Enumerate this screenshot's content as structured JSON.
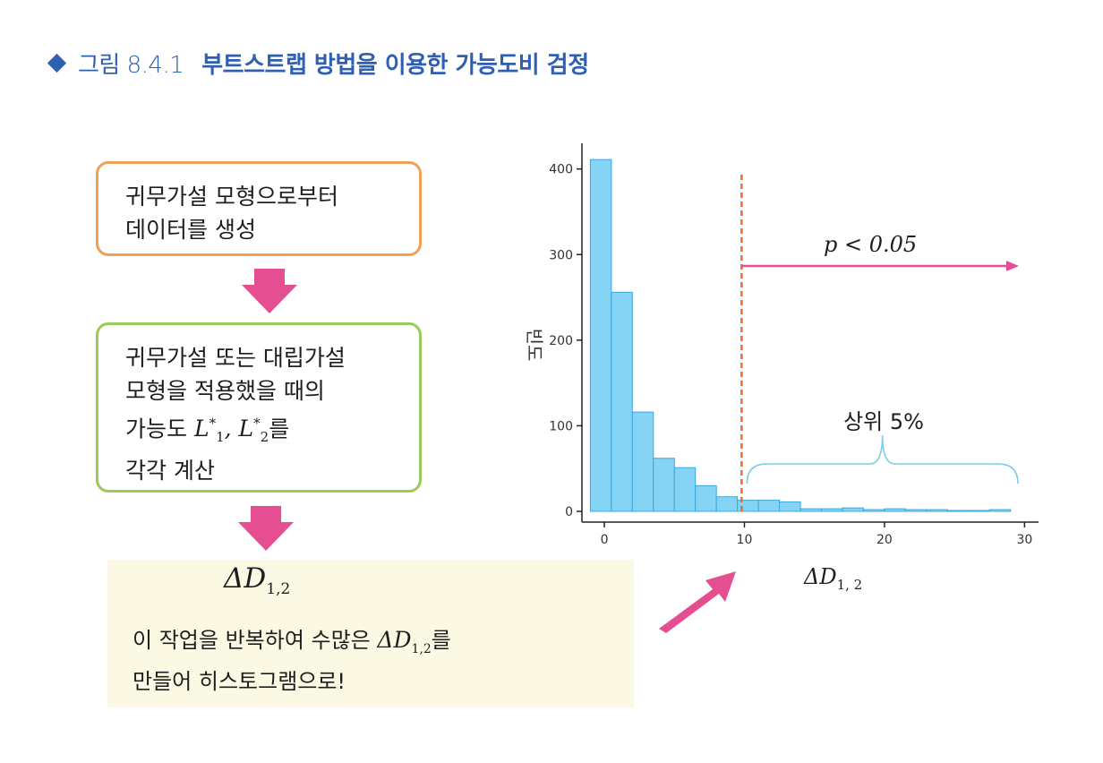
{
  "header": {
    "figure_label": "그림 8.4.1",
    "title": "부트스트랩 방법을 이용한 가능도비 검정"
  },
  "flow": {
    "step1": {
      "line1": "귀무가설 모형으로부터",
      "line2": "데이터를 생성"
    },
    "step2": {
      "line1": "귀무가설 또는 대립가설",
      "line2": "모형을 적용했을 때의",
      "line3_prefix": "가능도",
      "line3_math_a": "L",
      "line3_math_a_sub": "1",
      "line3_math_b": "L",
      "line3_math_b_sub": "2",
      "line3_suffix": "를",
      "line4": "각각 계산"
    },
    "result": {
      "delta": "ΔD",
      "delta_sub": "1,2",
      "line1_prefix": "이 작업을 반복하여 수많은",
      "line1_suffix": "를",
      "line2": "만들어 히스토그램으로!"
    }
  },
  "colors": {
    "bar_fill": "#86d4f5",
    "bar_stroke": "#3ba7db",
    "threshold_line": "#ef6a2f",
    "pink_arrow": "#e54f92",
    "brace": "#7ccbe8",
    "title_blue": "#2f5fb3",
    "box1_border": "#f0a055",
    "box2_border": "#9cc95a"
  },
  "chart_data": {
    "type": "bar",
    "x_tick_labels": [
      "0",
      "10",
      "20",
      "30"
    ],
    "y_tick_labels": [
      "0",
      "100",
      "200",
      "300",
      "400"
    ],
    "xlim": [
      -1.6,
      31
    ],
    "ylim": [
      0,
      430
    ],
    "bin_width": 1.5,
    "bin_starts": [
      -1,
      0.5,
      2,
      3.5,
      5,
      6.5,
      8,
      9.5,
      11,
      12.5,
      14,
      15.5,
      17,
      18.5,
      20,
      21.5,
      23,
      24.5,
      26,
      27.5
    ],
    "values": [
      411,
      256,
      116,
      62,
      51,
      30,
      17,
      13,
      13,
      11,
      3,
      3,
      4,
      2,
      3,
      2,
      2,
      1,
      1,
      2
    ],
    "threshold_x": 9.8,
    "ylabel": "빈도",
    "xlabel": "ΔD",
    "xlabel_sub": "1, 2",
    "annotation_p": "p < 0.05",
    "annotation_top": "상위 5%"
  }
}
